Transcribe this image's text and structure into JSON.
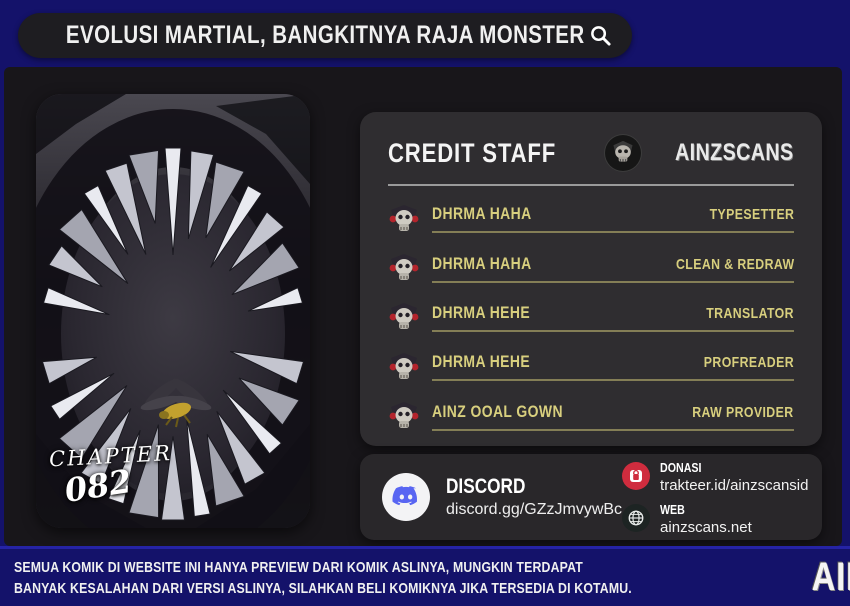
{
  "header": {
    "title": "EVOLUSI MARTIAL, BANGKITNYA RAJA MONSTER",
    "search_icon": "magnifier-icon"
  },
  "comic_panel": {
    "description": "monster mouth with silver teeth and golden wasp",
    "chapter_label": "CHAPTER",
    "chapter_number": "082"
  },
  "credit_panel": {
    "title": "CREDIT STAFF",
    "brand": "AINZSCANS",
    "brand_icon": "skull-logo-icon",
    "staff": [
      {
        "name": "DHRMA HAHA",
        "role": "TYPESETTER",
        "icon": "skull-avatar-icon"
      },
      {
        "name": "DHRMA HAHA",
        "role": "CLEAN & REDRAW",
        "icon": "skull-avatar-icon"
      },
      {
        "name": "DHRMA HEHE",
        "role": "TRANSLATOR",
        "icon": "skull-avatar-icon"
      },
      {
        "name": "DHRMA HEHE",
        "role": "PROFREADER",
        "icon": "skull-avatar-icon"
      },
      {
        "name": "AINZ OOAL GOWN",
        "role": "RAW PROVIDER",
        "icon": "skull-avatar-icon"
      }
    ]
  },
  "links_panel": {
    "discord": {
      "label": "DISCORD",
      "url": "discord.gg/GZzJmvywBc",
      "icon": "discord-icon"
    },
    "donasi": {
      "label": "DONASI",
      "url": "trakteer.id/ainzscansid",
      "icon": "trakteer-icon"
    },
    "web": {
      "label": "WEB",
      "url": "ainzscans.net",
      "icon": "globe-icon"
    }
  },
  "footer": {
    "disclaimer_line1": "SEMUA KOMIK DI WEBSITE INI HANYA PREVIEW DARI KOMIK ASLINYA, MUNGKIN TERDAPAT",
    "disclaimer_line2": "BANYAK KESALAHAN DARI VERSI ASLINYA, SILAHKAN BELI KOMIKNYA JIKA TERSEDIA DI KOTAMU.",
    "brand": "AINZSCANS"
  },
  "colors": {
    "background_navy": "#14126a",
    "mid_card": "#18161a",
    "panel_grey": "#2f2d30",
    "links_grey": "#29272a",
    "staff_yellow": "#d8cf7e",
    "discord_blue": "#5865f2",
    "trakteer_red": "#cf2c3e"
  }
}
